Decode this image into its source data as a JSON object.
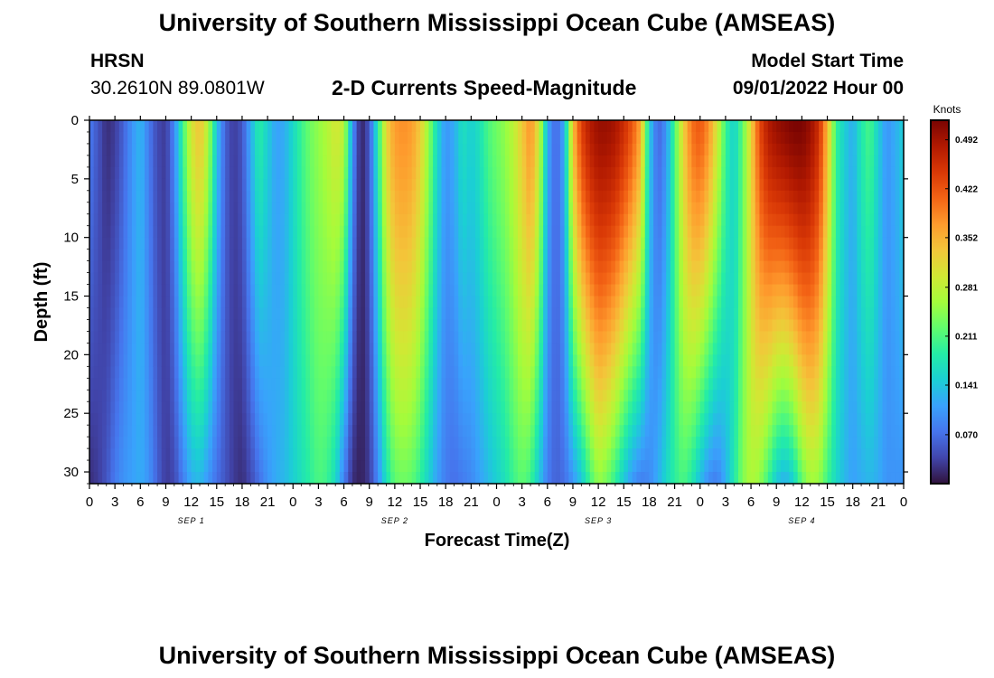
{
  "page_title": "University of Southern Mississippi Ocean Cube (AMSEAS)",
  "station": {
    "name": "HRSN",
    "coordinates": "30.2610N  89.0801W"
  },
  "model_start": {
    "label": "Model Start Time",
    "value": "09/01/2022 Hour 00"
  },
  "chart_data": {
    "type": "heatmap",
    "title": "2-D Currents Speed-Magnitude",
    "xlabel": "Forecast Time(Z)",
    "ylabel": "Depth (ft)",
    "x_tick_labels": [
      "0",
      "3",
      "6",
      "9",
      "12",
      "15",
      "18",
      "21",
      "0",
      "3",
      "6",
      "9",
      "12",
      "15",
      "18",
      "21",
      "0",
      "3",
      "6",
      "9",
      "12",
      "15",
      "18",
      "21",
      "0",
      "3",
      "6",
      "9",
      "12",
      "15",
      "18",
      "21",
      "0"
    ],
    "x_range_hours": [
      0,
      96
    ],
    "day_labels": [
      {
        "text": "SEP 1",
        "hour": 12
      },
      {
        "text": "SEP 2",
        "hour": 36
      },
      {
        "text": "SEP 3",
        "hour": 60
      },
      {
        "text": "SEP 4",
        "hour": 84
      }
    ],
    "y_ticks": [
      0,
      5,
      10,
      15,
      20,
      25,
      30
    ],
    "y_range_ft": [
      0,
      31
    ],
    "y_inverted": true,
    "colorbar": {
      "label": "Knots",
      "ticks": [
        "0.492",
        "0.422",
        "0.352",
        "0.281",
        "0.211",
        "0.141",
        "0.070"
      ],
      "tick_values": [
        0.492,
        0.422,
        0.352,
        0.281,
        0.211,
        0.141,
        0.07
      ],
      "min": 0.0,
      "max": 0.52,
      "colors": [
        "#30123b",
        "#4145ab",
        "#4675ed",
        "#39a2fc",
        "#1bcfd4",
        "#24eca6",
        "#61fc6c",
        "#a4fc3b",
        "#d1e834",
        "#f3c63a",
        "#fe9b2d",
        "#f36315",
        "#d93806",
        "#b11901",
        "#7a0402"
      ]
    },
    "speed_profile_hourly_knots": {
      "hours": [
        0,
        1,
        2,
        3,
        4,
        5,
        6,
        7,
        8,
        9,
        10,
        11,
        12,
        13,
        14,
        15,
        16,
        17,
        18,
        19,
        20,
        21,
        22,
        23,
        24,
        25,
        26,
        27,
        28,
        29,
        30,
        31,
        32,
        33,
        34,
        35,
        36,
        37,
        38,
        39,
        40,
        41,
        42,
        43,
        44,
        45,
        46,
        47,
        48,
        49,
        50,
        51,
        52,
        53,
        54,
        55,
        56,
        57,
        58,
        59,
        60,
        61,
        62,
        63,
        64,
        65,
        66,
        67,
        68,
        69,
        70,
        71,
        72,
        73,
        74,
        75,
        76,
        77,
        78,
        79,
        80,
        81,
        82,
        83,
        84,
        85,
        86,
        87,
        88,
        89,
        90,
        91,
        92,
        93,
        94,
        95,
        96
      ],
      "surface": [
        0.08,
        0.05,
        0.02,
        0.03,
        0.06,
        0.1,
        0.13,
        0.08,
        0.04,
        0.03,
        0.09,
        0.2,
        0.3,
        0.34,
        0.27,
        0.14,
        0.06,
        0.03,
        0.05,
        0.12,
        0.19,
        0.15,
        0.11,
        0.12,
        0.16,
        0.2,
        0.23,
        0.25,
        0.27,
        0.3,
        0.28,
        0.1,
        0.01,
        0.05,
        0.18,
        0.32,
        0.37,
        0.38,
        0.37,
        0.33,
        0.25,
        0.16,
        0.1,
        0.12,
        0.17,
        0.15,
        0.17,
        0.21,
        0.23,
        0.25,
        0.28,
        0.33,
        0.38,
        0.3,
        0.12,
        0.06,
        0.12,
        0.34,
        0.44,
        0.48,
        0.5,
        0.5,
        0.49,
        0.46,
        0.42,
        0.36,
        0.15,
        0.06,
        0.1,
        0.21,
        0.32,
        0.4,
        0.42,
        0.38,
        0.3,
        0.2,
        0.15,
        0.22,
        0.32,
        0.43,
        0.48,
        0.5,
        0.51,
        0.52,
        0.52,
        0.5,
        0.46,
        0.35,
        0.2,
        0.15,
        0.12,
        0.18,
        0.21,
        0.15,
        0.1,
        0.12,
        0.15
      ],
      "bottom": [
        0.02,
        0.03,
        0.05,
        0.08,
        0.1,
        0.11,
        0.12,
        0.1,
        0.06,
        0.03,
        0.04,
        0.08,
        0.12,
        0.13,
        0.1,
        0.07,
        0.05,
        0.03,
        0.02,
        0.04,
        0.07,
        0.1,
        0.12,
        0.13,
        0.15,
        0.17,
        0.19,
        0.21,
        0.2,
        0.16,
        0.08,
        0.02,
        0.01,
        0.03,
        0.09,
        0.17,
        0.22,
        0.23,
        0.22,
        0.19,
        0.15,
        0.11,
        0.08,
        0.07,
        0.08,
        0.09,
        0.11,
        0.13,
        0.15,
        0.17,
        0.2,
        0.22,
        0.2,
        0.14,
        0.08,
        0.06,
        0.07,
        0.1,
        0.14,
        0.2,
        0.25,
        0.23,
        0.19,
        0.14,
        0.1,
        0.08,
        0.09,
        0.12,
        0.16,
        0.19,
        0.21,
        0.18,
        0.13,
        0.09,
        0.08,
        0.12,
        0.18,
        0.24,
        0.27,
        0.25,
        0.2,
        0.14,
        0.12,
        0.15,
        0.22,
        0.26,
        0.25,
        0.2,
        0.16,
        0.13,
        0.11,
        0.12,
        0.13,
        0.12,
        0.1,
        0.1,
        0.1
      ]
    }
  }
}
